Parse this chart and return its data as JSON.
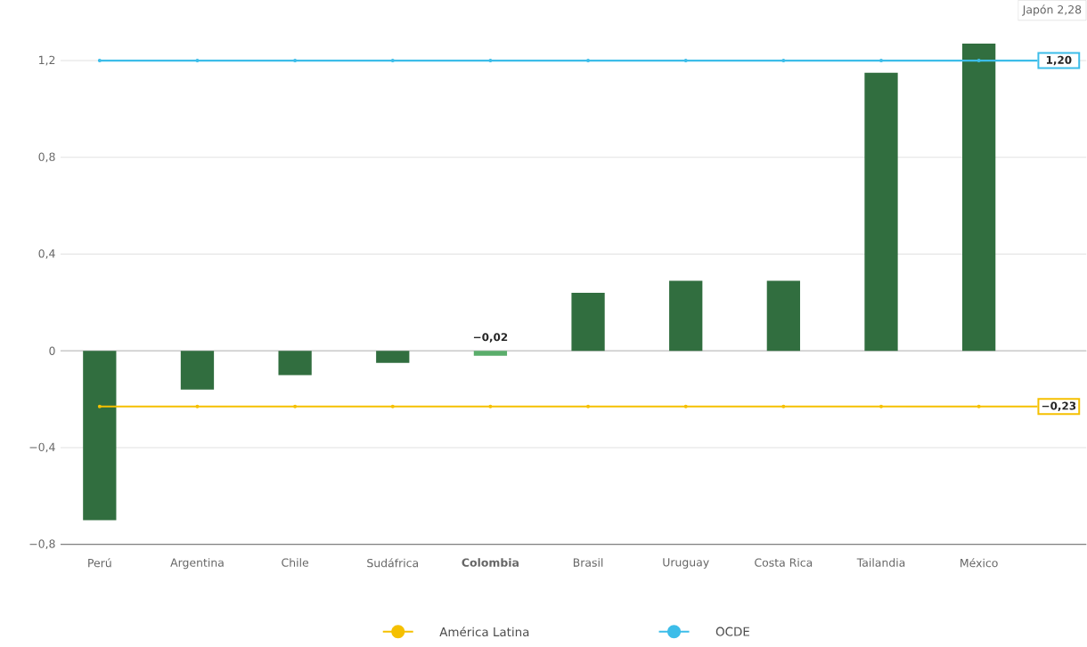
{
  "chart_data": {
    "type": "bar",
    "categories": [
      "Perú",
      "Argentina",
      "Chile",
      "Sudáfrica",
      "**Colombia**",
      "Brasil",
      "Uruguay",
      "Costa Rica",
      "Tailandia",
      "México"
    ],
    "series": [
      {
        "values": [
          -0.7,
          -0.16,
          -0.1,
          -0.05,
          -0.02,
          0.24,
          0.29,
          0.29,
          1.15,
          1.27
        ],
        "colors": [
          "#316e3f",
          "#316e3f",
          "#316e3f",
          "#316e3f",
          "#5aad6b",
          "#316e3f",
          "#316e3f",
          "#316e3f",
          "#316e3f",
          "#316e3f"
        ],
        "value_labels": [
          null,
          null,
          null,
          null,
          "−0,02",
          null,
          null,
          null,
          null,
          null
        ]
      },
      {
        "type": "line",
        "name": "América Latina",
        "color": "#f5c000",
        "values": [
          -0.23,
          -0.23,
          -0.23,
          -0.23,
          -0.23,
          -0.23,
          -0.23,
          -0.23,
          -0.23,
          -0.23
        ],
        "value_labels": [
          null,
          null,
          null,
          null,
          null,
          null,
          null,
          null,
          null,
          "−0,23"
        ]
      },
      {
        "type": "line",
        "name": "OCDE",
        "color": "#3cbde9",
        "values": [
          1.2,
          1.2,
          1.2,
          1.2,
          1.2,
          1.2,
          1.2,
          1.2,
          1.2,
          1.2
        ],
        "value_labels": [
          null,
          null,
          null,
          null,
          null,
          null,
          null,
          null,
          null,
          "1,20"
        ]
      }
    ],
    "ylim": [
      -0.8,
      1.45
    ],
    "yticks": [
      {
        "value": -0.8,
        "label": "−0,8"
      },
      {
        "value": -0.4,
        "label": "−0,4"
      },
      0,
      {
        "value": 0.4,
        "label": "0,4"
      },
      {
        "value": 0.8,
        "label": "0,8"
      },
      {
        "value": 1.2,
        "label": "1,2"
      }
    ],
    "grid": "y",
    "legend": "bottom",
    "marker": "circle",
    "line_style": "solid",
    "annotations": [
      "Japón 2,28"
    ]
  }
}
